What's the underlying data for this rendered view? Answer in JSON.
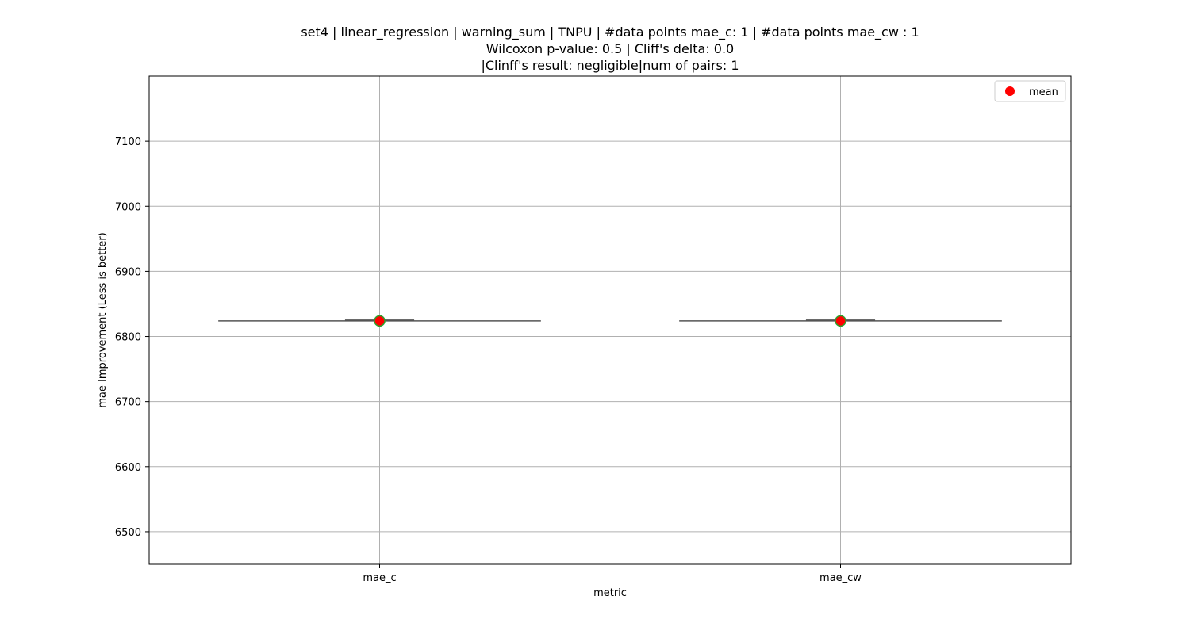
{
  "chart_data": {
    "type": "box",
    "title_lines": [
      "set4 | linear_regression | warning_sum | TNPU | #data points mae_c: 1 | #data points mae_cw : 1",
      "Wilcoxon p-value: 0.5 | Cliff's delta: 0.0",
      "|Clinff's result: negligible|num of pairs: 1"
    ],
    "xlabel": "metric",
    "ylabel": "mae Improvement (Less is better)",
    "categories": [
      "mae_c",
      "mae_cw"
    ],
    "ylim": [
      6450,
      7200
    ],
    "yticks": [
      6500,
      6600,
      6700,
      6800,
      6900,
      7000,
      7100
    ],
    "grid": true,
    "legend": {
      "position": "top-right",
      "entries": [
        {
          "label": "mean",
          "color": "#ff0000"
        }
      ]
    },
    "series": [
      {
        "category": "mae_c",
        "median": 6824,
        "mean": 6824,
        "q1": 6824,
        "q3": 6824,
        "whisker_low": 6824,
        "whisker_high": 6824
      },
      {
        "category": "mae_cw",
        "median": 6824,
        "mean": 6824,
        "q1": 6824,
        "q3": 6824,
        "whisker_low": 6824,
        "whisker_high": 6824
      }
    ],
    "colors": {
      "mean_marker": "#ff0000",
      "mean_edge": "#2ca02c",
      "box_line": "#555555",
      "grid": "#b0b0b0"
    }
  }
}
